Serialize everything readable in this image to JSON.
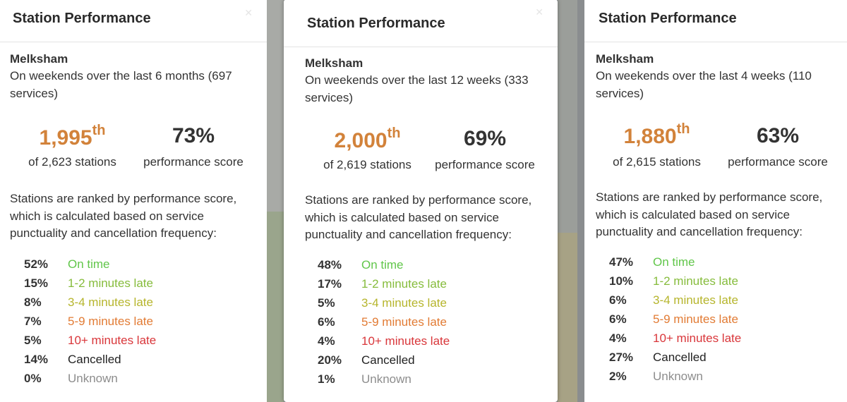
{
  "panels": [
    {
      "title": "Station Performance",
      "station": "Melksham",
      "subtitle": "On weekends over the last 6 months (697 services)",
      "rank": "1,995",
      "rank_suffix": "th",
      "rank_label": "of 2,623 stations",
      "score": "73%",
      "score_label": "performance score",
      "explain": "Stations are ranked by performance score, which is calculated based on service punctuality and cancellation frequency:",
      "stats": [
        {
          "pct": "52%",
          "label": "On time"
        },
        {
          "pct": "15%",
          "label": "1-2 minutes late"
        },
        {
          "pct": "8%",
          "label": "3-4 minutes late"
        },
        {
          "pct": "7%",
          "label": "5-9 minutes late"
        },
        {
          "pct": "5%",
          "label": "10+ minutes late"
        },
        {
          "pct": "14%",
          "label": "Cancelled"
        },
        {
          "pct": "0%",
          "label": "Unknown"
        }
      ]
    },
    {
      "title": "Station Performance",
      "station": "Melksham",
      "subtitle": "On weekends over the last 12 weeks (333 services)",
      "rank": "2,000",
      "rank_suffix": "th",
      "rank_label": "of 2,619 stations",
      "score": "69%",
      "score_label": "performance score",
      "explain": "Stations are ranked by performance score, which is calculated based on service punctuality and cancellation frequency:",
      "stats": [
        {
          "pct": "48%",
          "label": "On time"
        },
        {
          "pct": "17%",
          "label": "1-2 minutes late"
        },
        {
          "pct": "5%",
          "label": "3-4 minutes late"
        },
        {
          "pct": "6%",
          "label": "5-9 minutes late"
        },
        {
          "pct": "4%",
          "label": "10+ minutes late"
        },
        {
          "pct": "20%",
          "label": "Cancelled"
        },
        {
          "pct": "1%",
          "label": "Unknown"
        }
      ]
    },
    {
      "title": "Station Performance",
      "station": "Melksham",
      "subtitle": "On weekends over the last 4 weeks (110 services)",
      "rank": "1,880",
      "rank_suffix": "th",
      "rank_label": "of 2,615 stations",
      "score": "63%",
      "score_label": "performance score",
      "explain": "Stations are ranked by performance score, which is calculated based on service punctuality and cancellation frequency:",
      "stats": [
        {
          "pct": "47%",
          "label": "On time"
        },
        {
          "pct": "10%",
          "label": "1-2 minutes late"
        },
        {
          "pct": "6%",
          "label": "3-4 minutes late"
        },
        {
          "pct": "6%",
          "label": "5-9 minutes late"
        },
        {
          "pct": "4%",
          "label": "10+ minutes late"
        },
        {
          "pct": "27%",
          "label": "Cancelled"
        },
        {
          "pct": "2%",
          "label": "Unknown"
        }
      ]
    }
  ],
  "colors": {
    "rank": "#d2823a",
    "on_time": "#61c64a",
    "late_1_2": "#86bc3c",
    "late_3_4": "#b6b52c",
    "late_5_9": "#e27b34",
    "late_10": "#d9363a",
    "cancelled": "#222222",
    "unknown": "#8d8d8d"
  },
  "icons": {
    "close": "close-icon"
  }
}
